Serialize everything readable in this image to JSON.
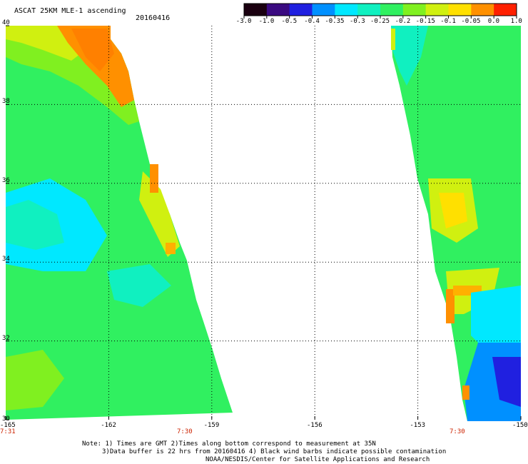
{
  "header": {
    "title": "ASCAT 25KM MLE-1 ascending",
    "date": "20160416"
  },
  "colorbar": {
    "labels": [
      "-3.0",
      "-1.0",
      "-0.5",
      "-0.4",
      "-0.35",
      "-0.3",
      "-0.25",
      "-0.2",
      "-0.15",
      "-0.1",
      "-0.05",
      "0.0",
      "1.0"
    ],
    "colors": [
      "#1a0010",
      "#3a0a80",
      "#2020e0",
      "#0090ff",
      "#00e8ff",
      "#10f0c0",
      "#30f060",
      "#80f020",
      "#d0f010",
      "#ffe000",
      "#ff9000",
      "#ff2000"
    ]
  },
  "map": {
    "lon_range": [
      -165,
      -150
    ],
    "lat_range": [
      30,
      40
    ],
    "x_ticks": [
      "-165",
      "-162",
      "-159",
      "-156",
      "-153",
      "-150"
    ],
    "y_ticks": [
      "40",
      "38",
      "36",
      "34",
      "32",
      "30"
    ],
    "time_labels": [
      "7:31",
      "7:30",
      "7:30"
    ]
  },
  "notes": {
    "line1": "Note: 1) Times are GMT 2)Times along bottom correspond to measurement at 35N",
    "line2": "3)Data buffer is 22 hrs from 20160416 4) Black wind barbs indicate possible contamination",
    "line3": "NOAA/NESDIS/Center for Satellite Applications and Research"
  }
}
